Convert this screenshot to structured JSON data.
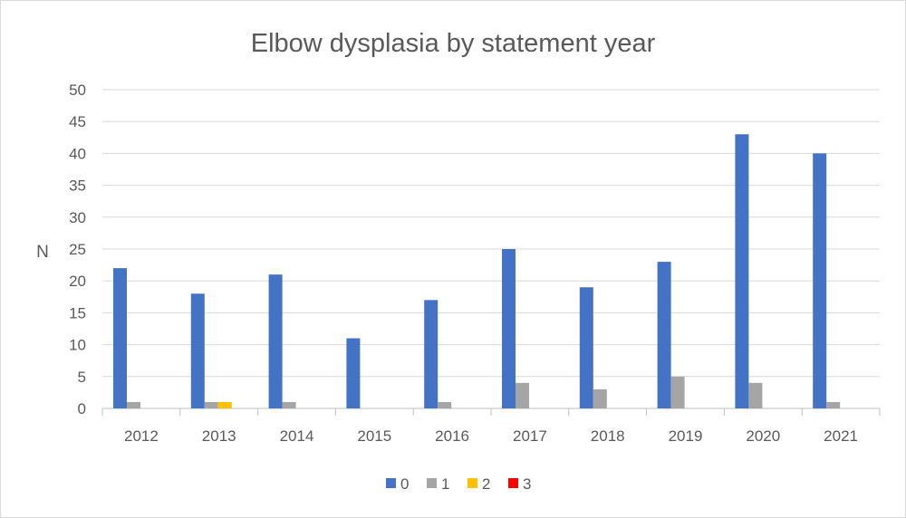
{
  "chart_data": {
    "type": "bar",
    "title": "Elbow dysplasia by statement year",
    "xlabel": "",
    "ylabel": "N",
    "ylim": [
      0,
      50
    ],
    "ytick_step": 5,
    "yticks": [
      "0",
      "5",
      "10",
      "15",
      "20",
      "25",
      "30",
      "35",
      "40",
      "45",
      "50"
    ],
    "grid": true,
    "legend_position": "bottom",
    "categories": [
      "2012",
      "2013",
      "2014",
      "2015",
      "2016",
      "2017",
      "2018",
      "2019",
      "2020",
      "2021"
    ],
    "series": [
      {
        "name": "0",
        "color": "#4472c4",
        "values": [
          22,
          18,
          21,
          11,
          17,
          25,
          19,
          23,
          43,
          40
        ]
      },
      {
        "name": "1",
        "color": "#a5a5a5",
        "values": [
          1,
          1,
          1,
          0,
          1,
          4,
          3,
          5,
          4,
          1
        ]
      },
      {
        "name": "2",
        "color": "#ffc000",
        "values": [
          0,
          1,
          0,
          0,
          0,
          0,
          0,
          0,
          0,
          0
        ]
      },
      {
        "name": "3",
        "color": "#ff0000",
        "values": [
          0,
          0,
          0,
          0,
          0,
          0,
          0,
          0,
          0,
          0
        ]
      }
    ],
    "colors": {
      "grid": "#d9d9d9",
      "axis": "#bfbfbf",
      "text": "#595959",
      "title": "#595959"
    }
  }
}
